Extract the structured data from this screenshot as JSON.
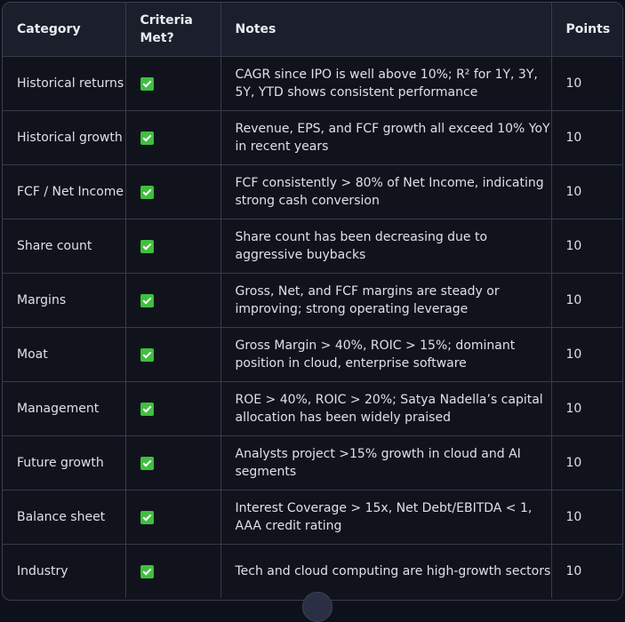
{
  "table": {
    "headers": {
      "category": "Category",
      "criteria": "Criteria Met?",
      "notes": "Notes",
      "points": "Points"
    },
    "rows": [
      {
        "category": "Historical returns",
        "criteria_icon": "green-check-icon",
        "notes": "CAGR since IPO is well above 10%; R² for 1Y, 3Y, 5Y, YTD shows consistent performance",
        "points": "10"
      },
      {
        "category": "Historical growth",
        "criteria_icon": "green-check-icon",
        "notes": "Revenue, EPS, and FCF growth all exceed 10% YoY in recent years",
        "points": "10"
      },
      {
        "category": "FCF / Net Income",
        "criteria_icon": "green-check-icon",
        "notes": "FCF consistently > 80% of Net Income, indicating strong cash conversion",
        "points": "10"
      },
      {
        "category": "Share count",
        "criteria_icon": "green-check-icon",
        "notes": "Share count has been decreasing due to aggressive buybacks",
        "points": "10"
      },
      {
        "category": "Margins",
        "criteria_icon": "green-check-icon",
        "notes": "Gross, Net, and FCF margins are steady or improving; strong operating leverage",
        "points": "10"
      },
      {
        "category": "Moat",
        "criteria_icon": "green-check-icon",
        "notes": "Gross Margin > 40%, ROIC > 15%; dominant position in cloud, enterprise software",
        "points": "10"
      },
      {
        "category": "Management",
        "criteria_icon": "green-check-icon",
        "notes": "ROE > 40%, ROIC > 20%; Satya Nadella’s capital allocation has been widely praised",
        "points": "10"
      },
      {
        "category": "Future growth",
        "criteria_icon": "green-check-icon",
        "notes": "Analysts project >15% growth in cloud and AI segments",
        "points": "10"
      },
      {
        "category": "Balance sheet",
        "criteria_icon": "green-check-icon",
        "notes": "Interest Coverage > 15x, Net Debt/EBITDA < 1, AAA credit rating",
        "points": "10"
      },
      {
        "category": "Industry",
        "criteria_icon": "green-check-icon",
        "notes": "Tech and cloud computing are high-growth sectors",
        "points": "10"
      }
    ]
  },
  "colors": {
    "background": "#11131c",
    "header_background": "#1b1e2b",
    "border": "#363a4d",
    "check": "#3fbf3f"
  }
}
